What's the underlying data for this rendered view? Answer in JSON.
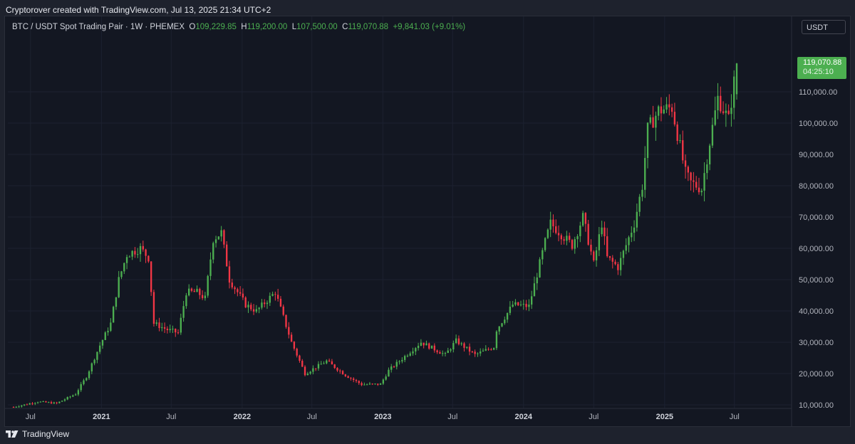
{
  "header": {
    "attribution": "Cryptorover created with TradingView.com, Jul 13, 2025 21:34 UTC+2"
  },
  "legend": {
    "symbol": "BTC / USDT Spot Trading Pair · 1W · PHEMEX",
    "open_label": "O",
    "open": "109,229.85",
    "high_label": "H",
    "high": "119,200.00",
    "low_label": "L",
    "low": "107,500.00",
    "close_label": "C",
    "close": "119,070.88",
    "change": "+9,841.03 (+9.01%)"
  },
  "currency_button": {
    "label": "USDT"
  },
  "price_tag": {
    "price": "119,070.88",
    "countdown": "04:25:10"
  },
  "footer": {
    "brand": "TradingView",
    "logo_icon": "tradingview-logo-icon"
  },
  "colors": {
    "up": "#4caf50",
    "down": "#f23645",
    "background": "#131722",
    "frame": "#1e222d",
    "text": "#d1d4dc",
    "axis_text": "#b2b5be",
    "grid": "#1c2130"
  },
  "chart_data": {
    "type": "candlestick",
    "interval": "1W",
    "y_axis": {
      "side": "right",
      "ticks": [
        10000,
        20000,
        30000,
        40000,
        50000,
        60000,
        70000,
        80000,
        90000,
        100000,
        110000
      ],
      "tick_labels": [
        "10,000.00",
        "20,000.00",
        "30,000.00",
        "40,000.00",
        "50,000.00",
        "60,000.00",
        "70,000.00",
        "80,000.00",
        "90,000.00",
        "100,000.00",
        "110,000.00"
      ]
    },
    "x_axis": {
      "ticks": [
        {
          "date": "2020-07-01",
          "label": "Jul",
          "bold": false
        },
        {
          "date": "2021-01-01",
          "label": "2021",
          "bold": true
        },
        {
          "date": "2021-07-01",
          "label": "Jul",
          "bold": false
        },
        {
          "date": "2022-01-01",
          "label": "2022",
          "bold": true
        },
        {
          "date": "2022-07-01",
          "label": "Jul",
          "bold": false
        },
        {
          "date": "2023-01-01",
          "label": "2023",
          "bold": true
        },
        {
          "date": "2023-07-01",
          "label": "Jul",
          "bold": false
        },
        {
          "date": "2024-01-01",
          "label": "2024",
          "bold": true
        },
        {
          "date": "2024-07-01",
          "label": "Jul",
          "bold": false
        },
        {
          "date": "2025-01-01",
          "label": "2025",
          "bold": true
        },
        {
          "date": "2025-07-01",
          "label": "Jul",
          "bold": false
        }
      ]
    },
    "approx_weekly_close": [
      {
        "date": "2020-05-18",
        "close": 9300
      },
      {
        "date": "2020-07-20",
        "close": 11000
      },
      {
        "date": "2020-09-07",
        "close": 10500
      },
      {
        "date": "2020-10-26",
        "close": 13500
      },
      {
        "date": "2020-11-23",
        "close": 19000
      },
      {
        "date": "2020-12-28",
        "close": 29000
      },
      {
        "date": "2021-01-25",
        "close": 36000
      },
      {
        "date": "2021-02-15",
        "close": 50000
      },
      {
        "date": "2021-03-08",
        "close": 58000
      },
      {
        "date": "2021-04-12",
        "close": 60000
      },
      {
        "date": "2021-05-03",
        "close": 57000
      },
      {
        "date": "2021-05-17",
        "close": 36000
      },
      {
        "date": "2021-06-21",
        "close": 34000
      },
      {
        "date": "2021-07-19",
        "close": 33000
      },
      {
        "date": "2021-08-09",
        "close": 46000
      },
      {
        "date": "2021-09-06",
        "close": 46000
      },
      {
        "date": "2021-09-27",
        "close": 44000
      },
      {
        "date": "2021-10-18",
        "close": 63000
      },
      {
        "date": "2021-11-08",
        "close": 65000
      },
      {
        "date": "2021-11-29",
        "close": 50000
      },
      {
        "date": "2022-01-10",
        "close": 42000
      },
      {
        "date": "2022-02-07",
        "close": 40000
      },
      {
        "date": "2022-03-28",
        "close": 46000
      },
      {
        "date": "2022-05-09",
        "close": 30000
      },
      {
        "date": "2022-06-13",
        "close": 20000
      },
      {
        "date": "2022-08-08",
        "close": 24000
      },
      {
        "date": "2022-09-26",
        "close": 19500
      },
      {
        "date": "2022-11-07",
        "close": 16500
      },
      {
        "date": "2022-12-26",
        "close": 16600
      },
      {
        "date": "2023-01-16",
        "close": 21000
      },
      {
        "date": "2023-03-13",
        "close": 27000
      },
      {
        "date": "2023-04-10",
        "close": 30000
      },
      {
        "date": "2023-06-12",
        "close": 26000
      },
      {
        "date": "2023-07-10",
        "close": 30500
      },
      {
        "date": "2023-08-28",
        "close": 26000
      },
      {
        "date": "2023-10-16",
        "close": 28500
      },
      {
        "date": "2023-10-23",
        "close": 34000
      },
      {
        "date": "2023-12-04",
        "close": 42000
      },
      {
        "date": "2024-01-15",
        "close": 41500
      },
      {
        "date": "2024-02-26",
        "close": 62000
      },
      {
        "date": "2024-03-11",
        "close": 68000
      },
      {
        "date": "2024-05-06",
        "close": 61000
      },
      {
        "date": "2024-06-03",
        "close": 70000
      },
      {
        "date": "2024-07-01",
        "close": 55000
      },
      {
        "date": "2024-07-22",
        "close": 68000
      },
      {
        "date": "2024-08-05",
        "close": 57000
      },
      {
        "date": "2024-09-02",
        "close": 54000
      },
      {
        "date": "2024-10-14",
        "close": 68000
      },
      {
        "date": "2024-11-04",
        "close": 80000
      },
      {
        "date": "2024-11-18",
        "close": 98000
      },
      {
        "date": "2024-12-16",
        "close": 104000
      },
      {
        "date": "2025-01-20",
        "close": 105000
      },
      {
        "date": "2025-02-24",
        "close": 84000
      },
      {
        "date": "2025-03-10",
        "close": 81000
      },
      {
        "date": "2025-04-07",
        "close": 79000
      },
      {
        "date": "2025-04-28",
        "close": 94000
      },
      {
        "date": "2025-05-19",
        "close": 108000
      },
      {
        "date": "2025-06-16",
        "close": 101000
      },
      {
        "date": "2025-07-07",
        "close": 119070.88
      }
    ],
    "last_candle": {
      "date": "2025-07-07",
      "open": 109229.85,
      "high": 119200.0,
      "low": 107500.0,
      "close": 119070.88
    }
  }
}
